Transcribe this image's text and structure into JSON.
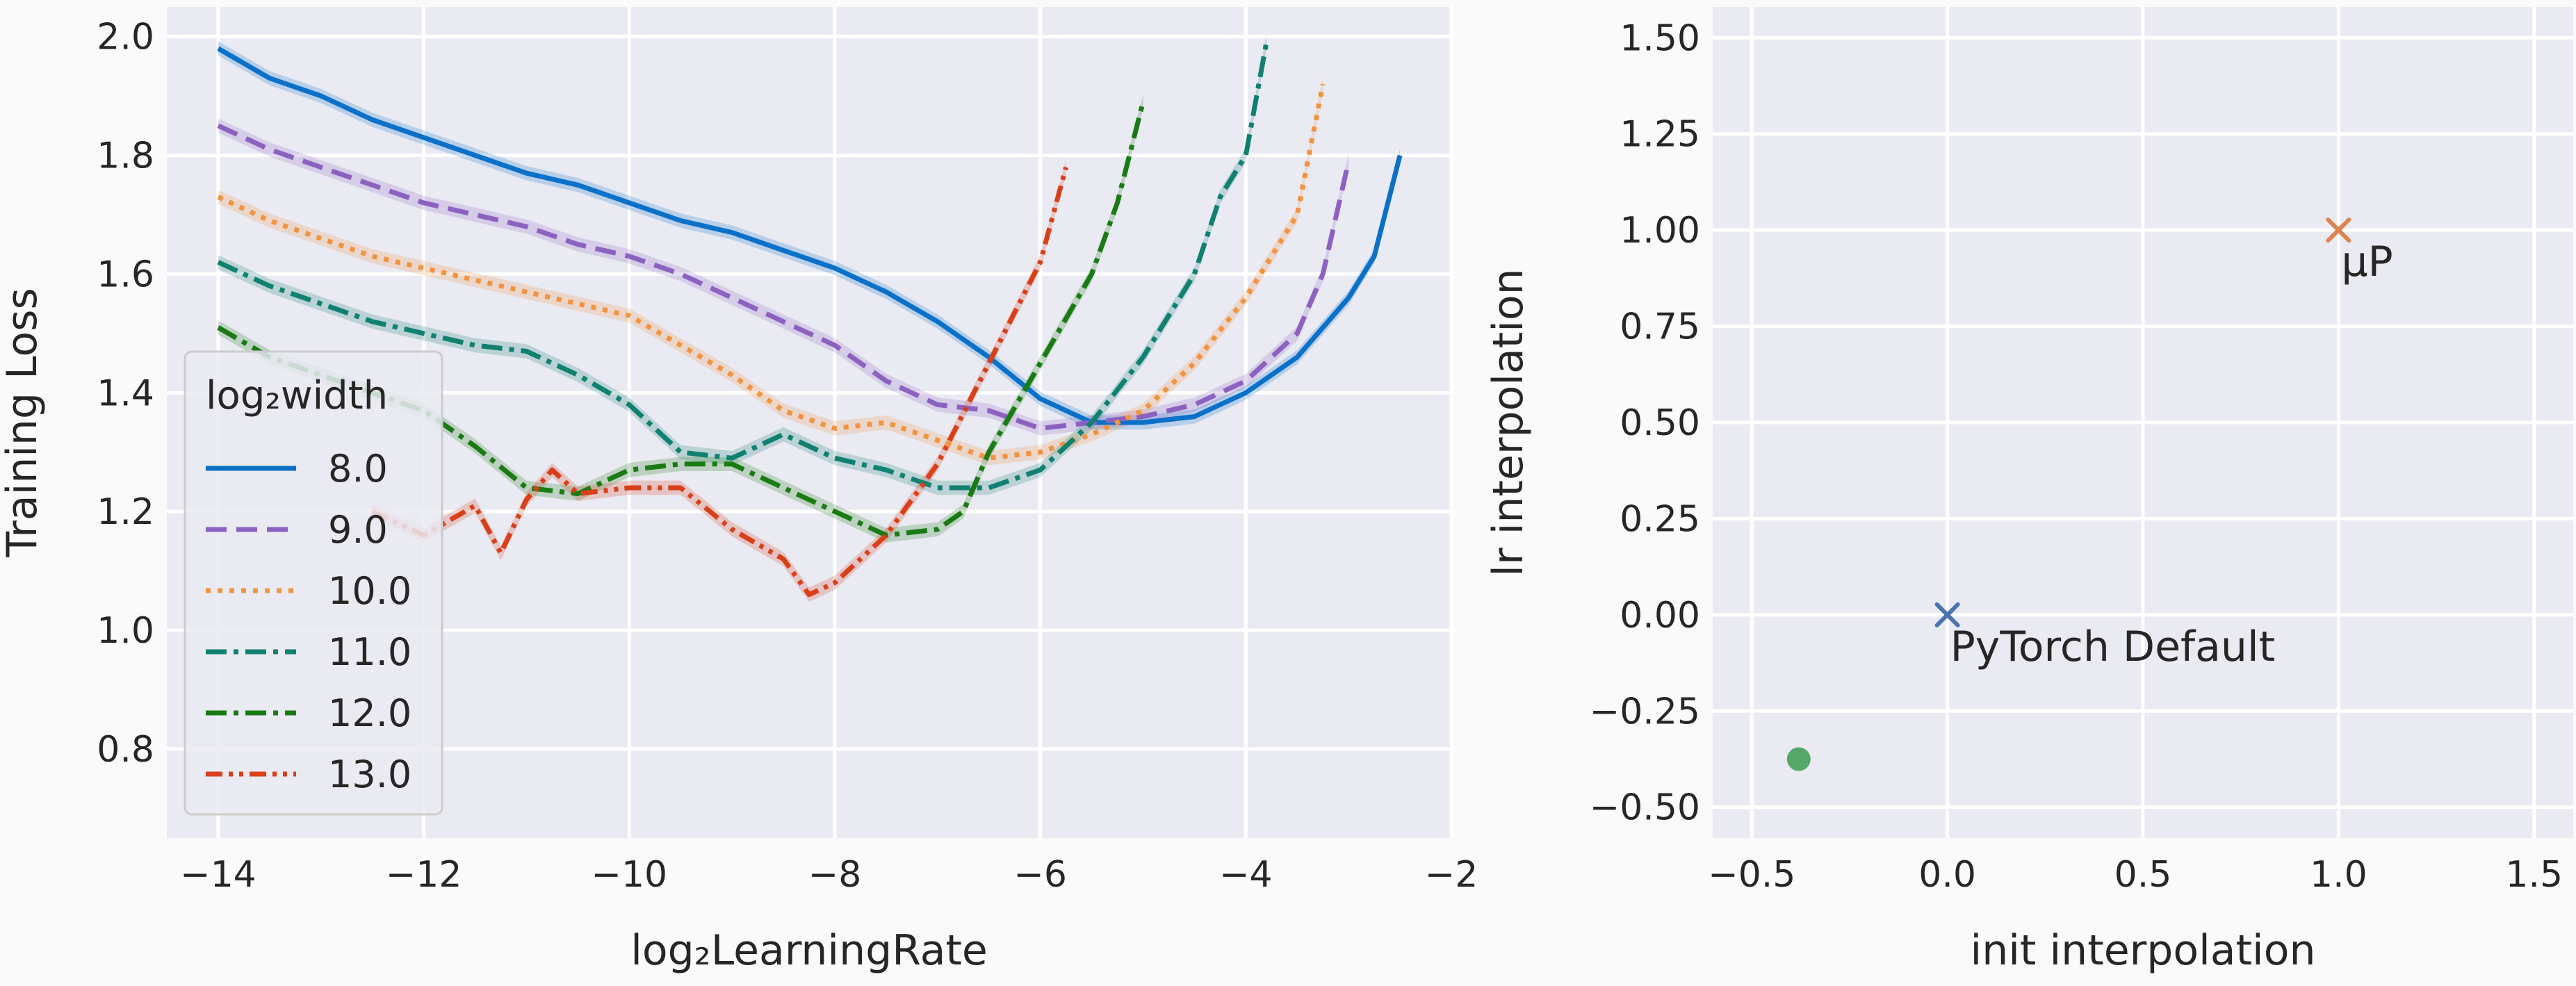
{
  "chart_data": [
    {
      "type": "line",
      "xlabel": "log₂LearningRate",
      "ylabel": "Training Loss",
      "xlim": [
        -14.5,
        -2
      ],
      "ylim": [
        0.65,
        2.05
      ],
      "xticks": [
        -14,
        -12,
        -10,
        -8,
        -6,
        -4,
        -2
      ],
      "yticks": [
        0.8,
        1.0,
        1.2,
        1.4,
        1.6,
        1.8,
        2.0
      ],
      "xtick_labels": [
        "−14",
        "−12",
        "−10",
        "−8",
        "−6",
        "−4",
        "−2"
      ],
      "ytick_labels": [
        "0.8",
        "1.0",
        "1.2",
        "1.4",
        "1.6",
        "1.8",
        "2.0"
      ],
      "grid": true,
      "legend_title": "log₂width",
      "legend_position": "lower-left",
      "series": [
        {
          "name": "8.0",
          "color": "#0a70c8",
          "style": "solid",
          "points": [
            [
              -14,
              1.98
            ],
            [
              -13.5,
              1.93
            ],
            [
              -13,
              1.9
            ],
            [
              -12.5,
              1.86
            ],
            [
              -12,
              1.83
            ],
            [
              -11.5,
              1.8
            ],
            [
              -11,
              1.77
            ],
            [
              -10.5,
              1.75
            ],
            [
              -10,
              1.72
            ],
            [
              -9.5,
              1.69
            ],
            [
              -9,
              1.67
            ],
            [
              -8.5,
              1.64
            ],
            [
              -8,
              1.61
            ],
            [
              -7.5,
              1.57
            ],
            [
              -7,
              1.52
            ],
            [
              -6.5,
              1.46
            ],
            [
              -6,
              1.39
            ],
            [
              -5.5,
              1.35
            ],
            [
              -5,
              1.35
            ],
            [
              -4.5,
              1.36
            ],
            [
              -4,
              1.4
            ],
            [
              -3.5,
              1.46
            ],
            [
              -3,
              1.56
            ],
            [
              -2.75,
              1.63
            ],
            [
              -2.5,
              1.8
            ]
          ]
        },
        {
          "name": "9.0",
          "color": "#8c62c0",
          "style": "dashed",
          "points": [
            [
              -14,
              1.85
            ],
            [
              -13.5,
              1.81
            ],
            [
              -13,
              1.78
            ],
            [
              -12.5,
              1.75
            ],
            [
              -12,
              1.72
            ],
            [
              -11.5,
              1.7
            ],
            [
              -11,
              1.68
            ],
            [
              -10.5,
              1.65
            ],
            [
              -10,
              1.63
            ],
            [
              -9.5,
              1.6
            ],
            [
              -9,
              1.56
            ],
            [
              -8.5,
              1.52
            ],
            [
              -8,
              1.48
            ],
            [
              -7.5,
              1.42
            ],
            [
              -7,
              1.38
            ],
            [
              -6.5,
              1.37
            ],
            [
              -6,
              1.34
            ],
            [
              -5.5,
              1.35
            ],
            [
              -5,
              1.36
            ],
            [
              -4.5,
              1.38
            ],
            [
              -4,
              1.42
            ],
            [
              -3.5,
              1.5
            ],
            [
              -3.25,
              1.6
            ],
            [
              -3,
              1.79
            ]
          ]
        },
        {
          "name": "10.0",
          "color": "#f2933f",
          "style": "dotted",
          "points": [
            [
              -14,
              1.73
            ],
            [
              -13.5,
              1.69
            ],
            [
              -13,
              1.66
            ],
            [
              -12.5,
              1.63
            ],
            [
              -12,
              1.61
            ],
            [
              -11.5,
              1.59
            ],
            [
              -11,
              1.57
            ],
            [
              -10.5,
              1.55
            ],
            [
              -10,
              1.53
            ],
            [
              -9.5,
              1.48
            ],
            [
              -9,
              1.43
            ],
            [
              -8.5,
              1.37
            ],
            [
              -8,
              1.34
            ],
            [
              -7.5,
              1.35
            ],
            [
              -7,
              1.32
            ],
            [
              -6.5,
              1.29
            ],
            [
              -6,
              1.3
            ],
            [
              -5.5,
              1.33
            ],
            [
              -5,
              1.37
            ],
            [
              -4.5,
              1.45
            ],
            [
              -4,
              1.56
            ],
            [
              -3.5,
              1.7
            ],
            [
              -3.25,
              1.92
            ]
          ]
        },
        {
          "name": "11.0",
          "color": "#108070",
          "style": "dashdot",
          "points": [
            [
              -14,
              1.62
            ],
            [
              -13.5,
              1.58
            ],
            [
              -13,
              1.55
            ],
            [
              -12.5,
              1.52
            ],
            [
              -12,
              1.5
            ],
            [
              -11.5,
              1.48
            ],
            [
              -11,
              1.47
            ],
            [
              -10.5,
              1.43
            ],
            [
              -10,
              1.38
            ],
            [
              -9.5,
              1.3
            ],
            [
              -9,
              1.29
            ],
            [
              -8.5,
              1.33
            ],
            [
              -8,
              1.29
            ],
            [
              -7.5,
              1.27
            ],
            [
              -7,
              1.24
            ],
            [
              -6.5,
              1.24
            ],
            [
              -6,
              1.27
            ],
            [
              -5.5,
              1.35
            ],
            [
              -5,
              1.46
            ],
            [
              -4.5,
              1.6
            ],
            [
              -4.25,
              1.73
            ],
            [
              -4,
              1.8
            ],
            [
              -3.8,
              1.99
            ]
          ]
        },
        {
          "name": "12.0",
          "color": "#1a7a14",
          "style": "dashdot",
          "points": [
            [
              -14,
              1.51
            ],
            [
              -13.5,
              1.46
            ],
            [
              -13,
              1.43
            ],
            [
              -12.5,
              1.4
            ],
            [
              -12,
              1.37
            ],
            [
              -11.5,
              1.31
            ],
            [
              -11,
              1.24
            ],
            [
              -10.5,
              1.23
            ],
            [
              -10,
              1.27
            ],
            [
              -9.5,
              1.28
            ],
            [
              -9,
              1.28
            ],
            [
              -8.5,
              1.24
            ],
            [
              -8,
              1.2
            ],
            [
              -7.5,
              1.16
            ],
            [
              -7,
              1.17
            ],
            [
              -6.75,
              1.2
            ],
            [
              -6.5,
              1.3
            ],
            [
              -6,
              1.45
            ],
            [
              -5.5,
              1.6
            ],
            [
              -5.25,
              1.72
            ],
            [
              -5,
              1.89
            ]
          ]
        },
        {
          "name": "13.0",
          "color": "#d8401a",
          "style": "dashdotdot",
          "points": [
            [
              -12.5,
              1.2
            ],
            [
              -12,
              1.16
            ],
            [
              -11.5,
              1.21
            ],
            [
              -11.25,
              1.13
            ],
            [
              -11,
              1.22
            ],
            [
              -10.75,
              1.27
            ],
            [
              -10.5,
              1.23
            ],
            [
              -10,
              1.24
            ],
            [
              -9.5,
              1.24
            ],
            [
              -9,
              1.17
            ],
            [
              -8.5,
              1.12
            ],
            [
              -8.25,
              1.06
            ],
            [
              -8,
              1.08
            ],
            [
              -7.5,
              1.16
            ],
            [
              -7,
              1.28
            ],
            [
              -6.5,
              1.45
            ],
            [
              -6,
              1.62
            ],
            [
              -5.75,
              1.78
            ]
          ]
        }
      ]
    },
    {
      "type": "scatter",
      "xlabel": "init interpolation",
      "ylabel": "lr interpolation",
      "xlim": [
        -0.6,
        1.6
      ],
      "ylim": [
        -0.58,
        1.58
      ],
      "xticks": [
        -0.5,
        0.0,
        0.5,
        1.0,
        1.5
      ],
      "yticks": [
        -0.5,
        -0.25,
        0.0,
        0.25,
        0.5,
        0.75,
        1.0,
        1.25,
        1.5
      ],
      "xtick_labels": [
        "−0.5",
        "0.0",
        "0.5",
        "1.0",
        "1.5"
      ],
      "ytick_labels": [
        "−0.50",
        "−0.25",
        "0.00",
        "0.25",
        "0.50",
        "0.75",
        "1.00",
        "1.25",
        "1.50"
      ],
      "grid": true,
      "points": [
        {
          "x": 0.0,
          "y": 0.0,
          "marker": "x",
          "color": "#4c72b0",
          "label": "PyTorch Default"
        },
        {
          "x": 1.0,
          "y": 1.0,
          "marker": "x",
          "color": "#dd8452",
          "label": "μP"
        },
        {
          "x": -0.38,
          "y": -0.375,
          "marker": "circle",
          "color": "#55a868",
          "label": ""
        }
      ]
    }
  ]
}
